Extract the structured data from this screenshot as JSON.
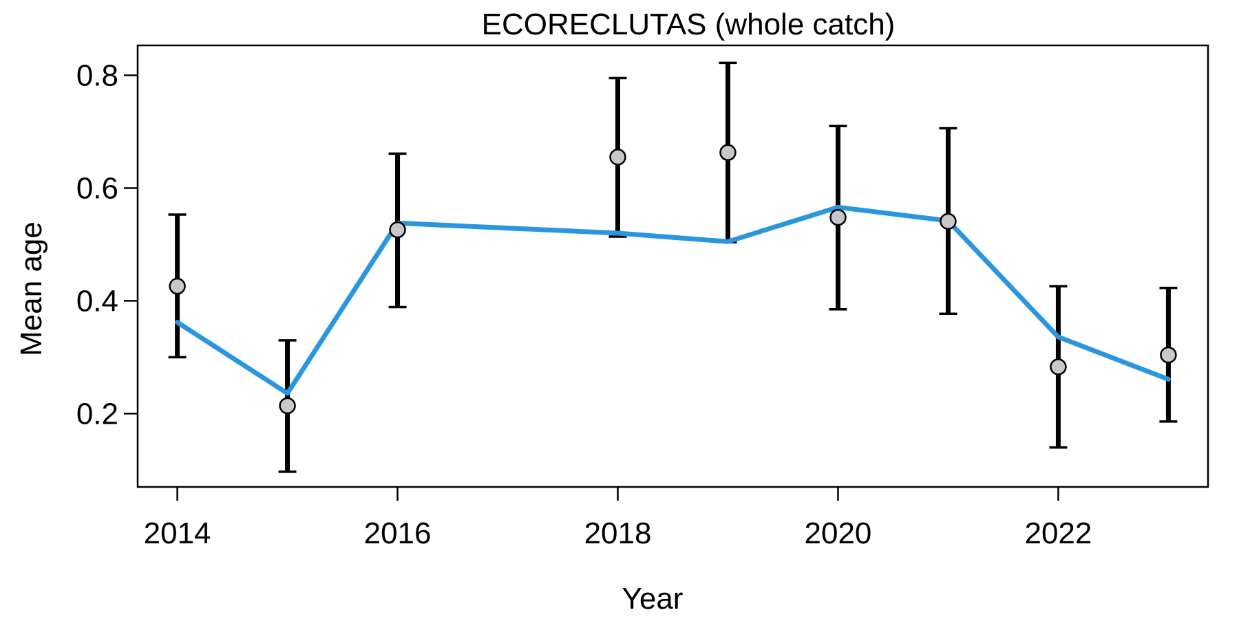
{
  "chart_data": {
    "type": "line",
    "title": "ECORECLUTAS (whole catch)",
    "xlabel": "Year",
    "ylabel": "Mean age",
    "xlim": [
      2013.64,
      2023.36
    ],
    "ylim": [
      0.07,
      0.853
    ],
    "x_ticks": [
      2014,
      2016,
      2018,
      2020,
      2022
    ],
    "x_tick_labels": [
      "2014",
      "2016",
      "2018",
      "2020",
      "2022"
    ],
    "y_ticks": [
      0.2,
      0.4,
      0.6,
      0.8
    ],
    "y_tick_labels": [
      "0.2",
      "0.4",
      "0.6",
      "0.8"
    ],
    "grid": false,
    "legend": "none",
    "colors": {
      "line": "#2b96e0",
      "point_fill": "#c8c8c8",
      "error_bar": "#000000"
    },
    "observed": {
      "x": [
        2014,
        2015,
        2016,
        2018,
        2019,
        2020,
        2021,
        2022,
        2023
      ],
      "y": [
        0.426,
        0.214,
        0.526,
        0.655,
        0.663,
        0.548,
        0.541,
        0.283,
        0.304
      ],
      "lower": [
        0.3,
        0.097,
        0.389,
        0.514,
        0.504,
        0.385,
        0.377,
        0.14,
        0.186
      ],
      "upper": [
        0.553,
        0.33,
        0.661,
        0.795,
        0.822,
        0.71,
        0.706,
        0.426,
        0.423
      ]
    },
    "fitted": {
      "x": [
        2014,
        2015,
        2016,
        2018,
        2019,
        2020,
        2021,
        2022,
        2023
      ],
      "y": [
        0.362,
        0.236,
        0.538,
        0.52,
        0.505,
        0.566,
        0.542,
        0.336,
        0.261
      ]
    }
  }
}
